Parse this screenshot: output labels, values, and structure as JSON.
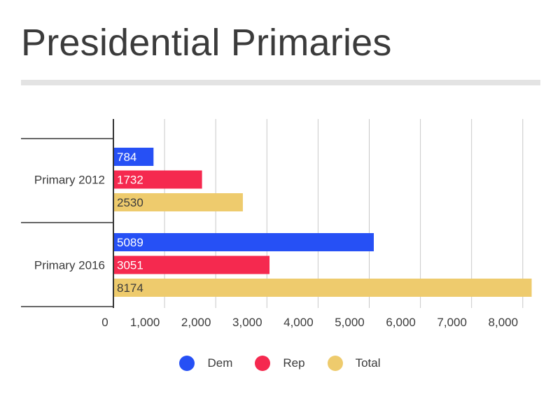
{
  "chart_data": {
    "type": "bar",
    "orientation": "horizontal",
    "title": "Presidential Primaries",
    "categories": [
      "Primary 2012",
      "Primary 2016"
    ],
    "series": [
      {
        "name": "Dem",
        "color": "#2650f5",
        "values": [
          784,
          5089
        ]
      },
      {
        "name": "Rep",
        "color": "#f5294f",
        "values": [
          1732,
          3051
        ]
      },
      {
        "name": "Total",
        "color": "#eecb6d",
        "values": [
          2530,
          8174
        ]
      }
    ],
    "x_ticks": [
      "0",
      "1,000",
      "2,000",
      "3,000",
      "4,000",
      "5,000",
      "6,000",
      "7,000",
      "8,000"
    ],
    "xlim": [
      0,
      8000
    ],
    "grid": true,
    "legend_position": "bottom"
  }
}
